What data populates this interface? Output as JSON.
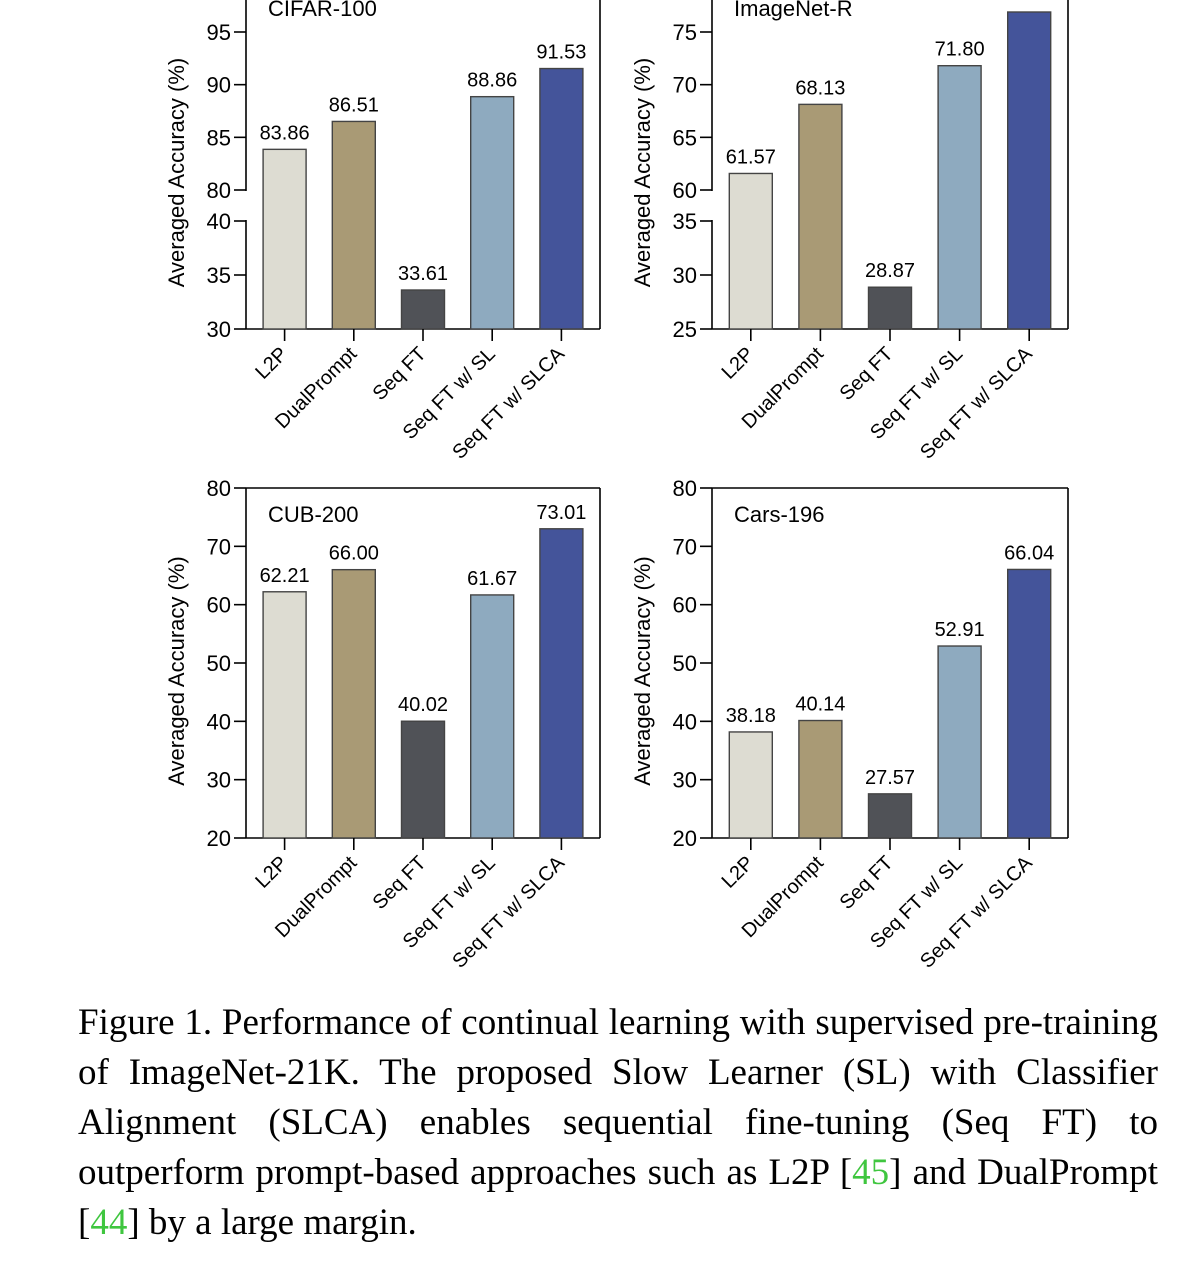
{
  "chart_data": [
    {
      "type": "bar",
      "title": "CIFAR-100",
      "ylabel": "Averaged Accuracy (%)",
      "categories": [
        "L2P",
        "DualPrompt",
        "Seq FT",
        "Seq FT w/ SL",
        "Seq FT w/ SLCA"
      ],
      "values": [
        83.86,
        86.51,
        33.61,
        88.86,
        91.53
      ],
      "value_labels": [
        "83.86",
        "86.51",
        "33.61",
        "88.86",
        "91.53"
      ],
      "axis_break": true,
      "lower_ylim": [
        30,
        40
      ],
      "upper_ylim": [
        80,
        95
      ],
      "yticks_lower": [
        "30",
        "35",
        "40"
      ],
      "yticks_upper": [
        "80",
        "85",
        "90",
        "95"
      ]
    },
    {
      "type": "bar",
      "title": "ImageNet-R",
      "ylabel": "Averaged Accuracy (%)",
      "categories": [
        "L2P",
        "DualPrompt",
        "Seq FT",
        "Seq FT w/ SL",
        "Seq FT w/ SLCA"
      ],
      "values": [
        61.57,
        68.13,
        28.87,
        71.8,
        77.0
      ],
      "value_labels": [
        "61.57",
        "68.13",
        "28.87",
        "71.80",
        ""
      ],
      "axis_break": true,
      "lower_ylim": [
        25,
        35
      ],
      "upper_ylim": [
        60,
        75
      ],
      "yticks_lower": [
        "25",
        "30",
        "35"
      ],
      "yticks_upper": [
        "60",
        "65",
        "70",
        "75"
      ]
    },
    {
      "type": "bar",
      "title": "CUB-200",
      "ylabel": "Averaged Accuracy (%)",
      "categories": [
        "L2P",
        "DualPrompt",
        "Seq FT",
        "Seq FT w/ SL",
        "Seq FT w/ SLCA"
      ],
      "values": [
        62.21,
        66.0,
        40.02,
        61.67,
        73.01
      ],
      "value_labels": [
        "62.21",
        "66.00",
        "40.02",
        "61.67",
        "73.01"
      ],
      "axis_break": false,
      "ylim": [
        20,
        80
      ],
      "yticks": [
        "20",
        "30",
        "40",
        "50",
        "60",
        "70",
        "80"
      ]
    },
    {
      "type": "bar",
      "title": "Cars-196",
      "ylabel": "Averaged Accuracy (%)",
      "categories": [
        "L2P",
        "DualPrompt",
        "Seq FT",
        "Seq FT w/ SL",
        "Seq FT w/ SLCA"
      ],
      "values": [
        38.18,
        40.14,
        27.57,
        52.91,
        66.04
      ],
      "value_labels": [
        "38.18",
        "40.14",
        "27.57",
        "52.91",
        "66.04"
      ],
      "axis_break": false,
      "ylim": [
        20,
        80
      ],
      "yticks": [
        "20",
        "30",
        "40",
        "50",
        "60",
        "70",
        "80"
      ]
    }
  ],
  "colors": {
    "bars": [
      "#dddcd2",
      "#a99a75",
      "#505257",
      "#8eaabf",
      "#44549a"
    ],
    "outline": "#444444",
    "axis": "#000000"
  },
  "caption": {
    "prefix": "Figure 1. Performance of continual learning with supervised pre-training of ImageNet-21K. The proposed Slow Learner (SL) with Classifier Alignment (SLCA) enables sequential fine-tuning (Seq FT) to outperform prompt-based approaches such as L2P [",
    "ref1": "45",
    "middle": "] and DualPrompt [",
    "ref2": "44",
    "suffix": "] by a large margin."
  }
}
